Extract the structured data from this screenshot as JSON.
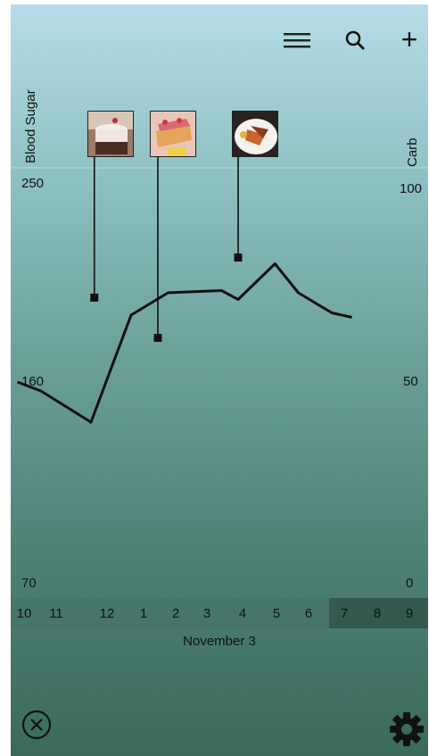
{
  "toolbar": {
    "menu_icon": "hamburger-menu-icon",
    "search_icon": "search-icon",
    "add_icon": "plus-icon",
    "add_glyph": "+"
  },
  "chart": {
    "left_axis_title": "Blood Sugar",
    "right_axis_title": "Carb",
    "left_ticks": [
      "250",
      "160",
      "70"
    ],
    "right_ticks": [
      "100",
      "50",
      "0"
    ]
  },
  "chart_data": {
    "type": "line",
    "ylabel": "Blood Sugar",
    "y2label": "Carb",
    "ylim": [
      70,
      250
    ],
    "y2lim": [
      0,
      100
    ],
    "x_hours": [
      "10",
      "11",
      "12",
      "1",
      "2",
      "3",
      "4",
      "5",
      "6",
      "7",
      "8",
      "9"
    ],
    "series": [
      {
        "name": "",
        "points": [
          {
            "x": 9.8,
            "y": 160
          },
          {
            "x": 10.5,
            "y": 156
          },
          {
            "x": 12.0,
            "y": 142
          },
          {
            "x": 13.2,
            "y": 190
          },
          {
            "x": 14.3,
            "y": 200
          },
          {
            "x": 15.9,
            "y": 201
          },
          {
            "x": 16.4,
            "y": 197
          },
          {
            "x": 17.5,
            "y": 213
          },
          {
            "x": 18.2,
            "y": 200
          },
          {
            "x": 19.2,
            "y": 191
          },
          {
            "x": 19.8,
            "y": 189
          }
        ]
      }
    ],
    "carb_markers": [
      {
        "x": 12.1,
        "carb": 71,
        "food": "dessert-cup"
      },
      {
        "x": 14.0,
        "carb": 61,
        "food": "cake-slice"
      },
      {
        "x": 16.4,
        "carb": 81,
        "food": "plated-meal"
      }
    ]
  },
  "timeline": {
    "hours": [
      "10",
      "11",
      "12",
      "1",
      "2",
      "3",
      "4",
      "5",
      "6",
      "7",
      "8",
      "9"
    ],
    "date": "November 3"
  },
  "footer": {
    "close_icon": "close-circle-icon",
    "settings_icon": "gear-icon"
  },
  "colors": {
    "line": "#111111",
    "strip_dark": "#3c5f53"
  }
}
